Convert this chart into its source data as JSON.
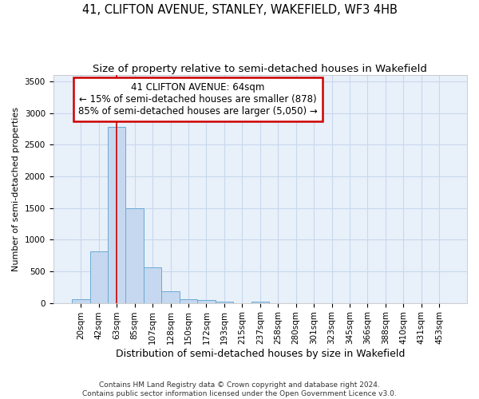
{
  "title": "41, CLIFTON AVENUE, STANLEY, WAKEFIELD, WF3 4HB",
  "subtitle": "Size of property relative to semi-detached houses in Wakefield",
  "xlabel": "Distribution of semi-detached houses by size in Wakefield",
  "ylabel": "Number of semi-detached properties",
  "categories": [
    "20sqm",
    "42sqm",
    "63sqm",
    "85sqm",
    "107sqm",
    "128sqm",
    "150sqm",
    "172sqm",
    "193sqm",
    "215sqm",
    "237sqm",
    "258sqm",
    "280sqm",
    "301sqm",
    "323sqm",
    "345sqm",
    "366sqm",
    "388sqm",
    "410sqm",
    "431sqm",
    "453sqm"
  ],
  "values": [
    60,
    820,
    2780,
    1500,
    560,
    185,
    60,
    40,
    20,
    0,
    25,
    0,
    0,
    0,
    0,
    0,
    0,
    0,
    0,
    0,
    0
  ],
  "bar_color": "#c5d8f0",
  "bar_edge_color": "#6aaad4",
  "property_line_x": 2.0,
  "annotation_text_line1": "41 CLIFTON AVENUE: 64sqm",
  "annotation_text_line2": "← 15% of semi-detached houses are smaller (878)",
  "annotation_text_line3": "85% of semi-detached houses are larger (5,050) →",
  "ylim": [
    0,
    3600
  ],
  "yticks": [
    0,
    500,
    1000,
    1500,
    2000,
    2500,
    3000,
    3500
  ],
  "grid_color": "#c8d8ee",
  "background_color": "#e8f0fa",
  "footer_line1": "Contains HM Land Registry data © Crown copyright and database right 2024.",
  "footer_line2": "Contains public sector information licensed under the Open Government Licence v3.0.",
  "title_fontsize": 10.5,
  "subtitle_fontsize": 9.5,
  "annotation_box_color": "#cc0000",
  "property_line_color": "#cc0000",
  "annot_fontsize": 8.5,
  "xlabel_fontsize": 9,
  "ylabel_fontsize": 8,
  "tick_fontsize": 7.5,
  "footer_fontsize": 6.5
}
